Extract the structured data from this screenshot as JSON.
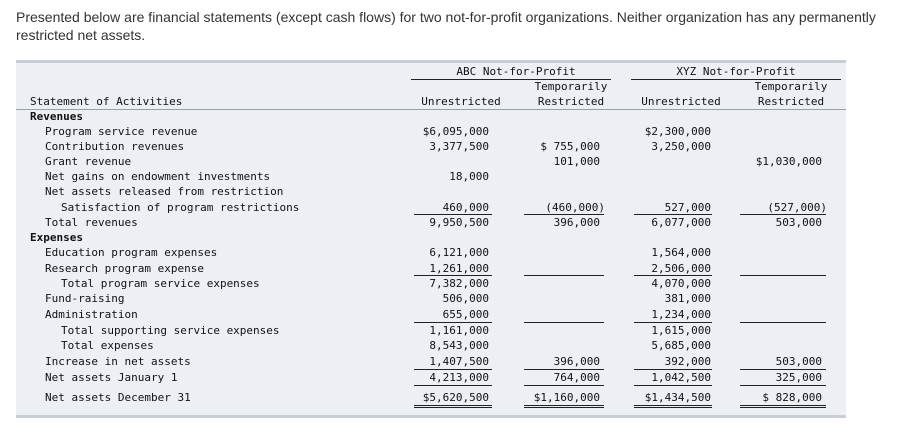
{
  "intro": "Presented below are financial statements (except cash flows) for two not-for-profit organizations. Neither organization has any permanently restricted net assets.",
  "headers": {
    "abc": "ABC Not-for-Profit",
    "xyz": "XYZ Not-for-Profit",
    "temp1": "Temporarily",
    "temp2": "Restricted",
    "unrestricted": "Unrestricted",
    "statement": "Statement of Activities"
  },
  "rows": {
    "revenues": "Revenues",
    "program_service_revenue": "Program service revenue",
    "contribution_revenues": "Contribution revenues",
    "grant_revenue": "Grant revenue",
    "net_gains": "Net gains on endowment investments",
    "released": "Net assets released from restriction",
    "satisfaction": "Satisfaction of program restrictions",
    "total_revenues": "Total revenues",
    "expenses": "Expenses",
    "education": "Education program expenses",
    "research": "Research program expense",
    "total_program": "Total program service expenses",
    "fundraising": "Fund-raising",
    "administration": "Administration",
    "total_supporting": "Total supporting service expenses",
    "total_expenses": "Total expenses",
    "increase": "Increase in net assets",
    "jan1": "Net assets January 1",
    "dec31": "Net assets December 31"
  },
  "values": {
    "abc_u": {
      "program_service_revenue": "$6,095,000",
      "contribution_revenues": "3,377,500",
      "net_gains": "18,000",
      "satisfaction": "460,000",
      "total_revenues": "9,950,500",
      "education": "6,121,000",
      "research": "1,261,000",
      "total_program": "7,382,000",
      "fundraising": "506,000",
      "administration": "655,000",
      "total_supporting": "1,161,000",
      "total_expenses": "8,543,000",
      "increase": "1,407,500",
      "jan1": "4,213,000",
      "dec31": "$5,620,500"
    },
    "abc_t": {
      "contribution_revenues": "$ 755,000",
      "grant_revenue": "101,000",
      "satisfaction": "(460,000)",
      "total_revenues": "396,000",
      "increase": "396,000",
      "jan1": "764,000",
      "dec31": "$1,160,000"
    },
    "xyz_u": {
      "program_service_revenue": "$2,300,000",
      "contribution_revenues": "3,250,000",
      "satisfaction": "527,000",
      "total_revenues": "6,077,000",
      "education": "1,564,000",
      "research": "2,506,000",
      "total_program": "4,070,000",
      "fundraising": "381,000",
      "administration": "1,234,000",
      "total_supporting": "1,615,000",
      "total_expenses": "5,685,000",
      "increase": "392,000",
      "jan1": "1,042,500",
      "dec31": "$1,434,500"
    },
    "xyz_t": {
      "grant_revenue": "$1,030,000",
      "satisfaction": "(527,000)",
      "total_revenues": "503,000",
      "increase": "503,000",
      "jan1": "325,000",
      "dec31": "$ 828,000"
    }
  }
}
